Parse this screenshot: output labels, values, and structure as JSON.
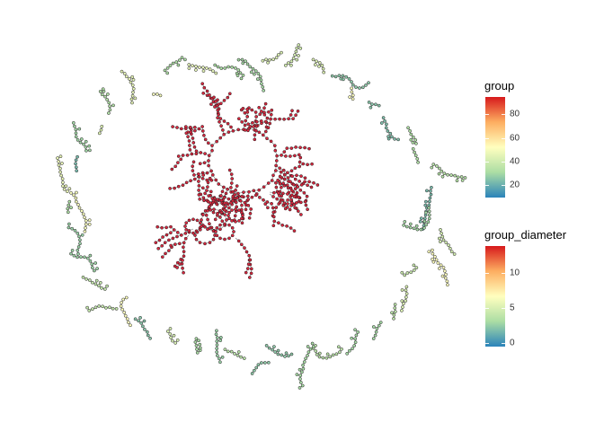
{
  "diagram": {
    "type": "network-graph",
    "layout": "central giant component surrounded by a ring of small components",
    "node_colour_encoding": "group",
    "node_outline_colour": "#1f1f1f"
  },
  "legends": [
    {
      "title": "group",
      "ticks": [
        "20",
        "40",
        "60",
        "80"
      ],
      "tick_values": [
        20,
        40,
        60,
        80
      ],
      "range": [
        1,
        90
      ]
    },
    {
      "title": "group_diameter",
      "ticks": [
        "0",
        "5",
        "10"
      ],
      "tick_values": [
        0,
        5,
        10
      ],
      "range": [
        0,
        14
      ]
    }
  ],
  "palette": [
    "#2b83ba",
    "#abdda4",
    "#ffffbf",
    "#fdae61",
    "#d7191c"
  ],
  "colors": {
    "giant_component": "#d7263d",
    "ring_components": "mixed blue / green / yellow-green"
  }
}
